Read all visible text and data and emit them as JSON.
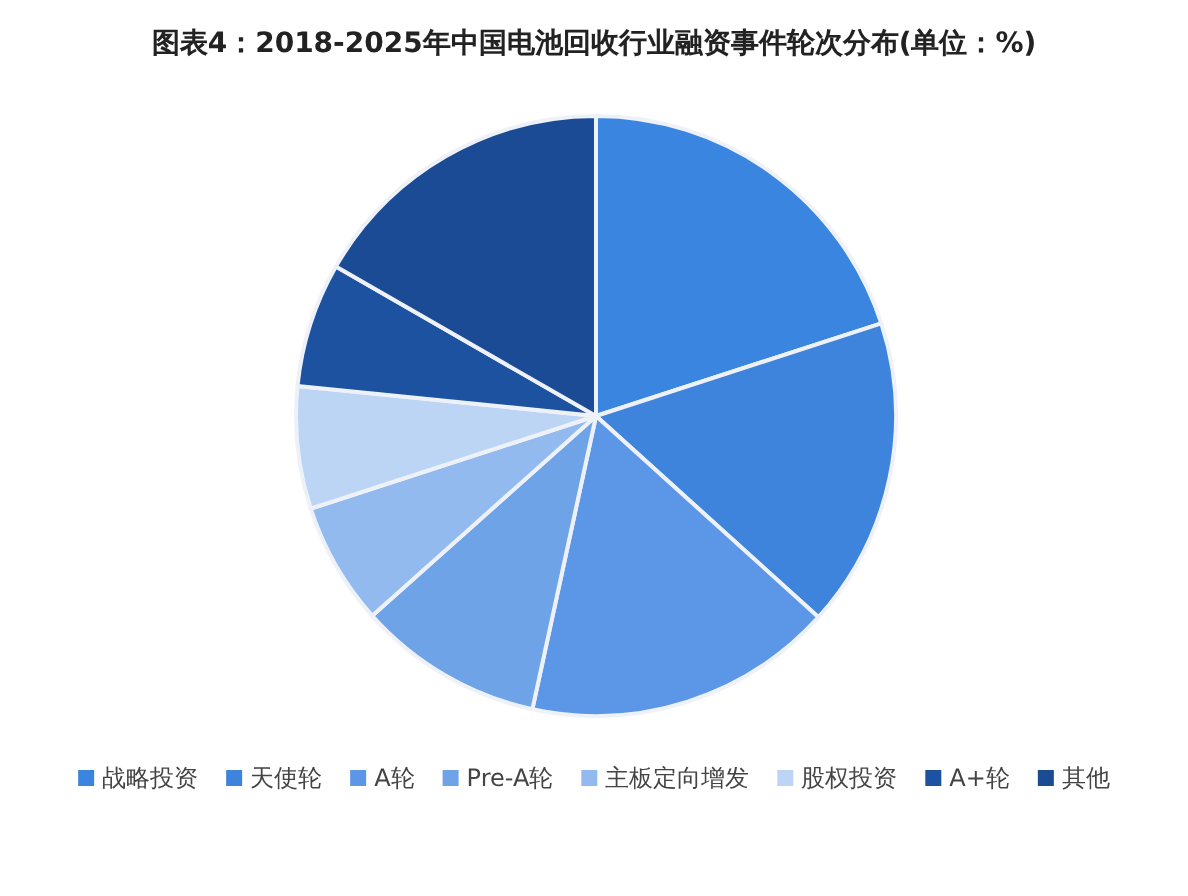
{
  "chart_data": {
    "type": "pie",
    "title": "图表4：2018-2025年中国电池回收行业融资事件轮次分布(单位：%)",
    "categories": [
      "战略投资",
      "天使轮",
      "A轮",
      "Pre-A轮",
      "主板定向增发",
      "股权投资",
      "A+轮",
      "其他"
    ],
    "values": [
      20,
      16.7,
      16.7,
      10,
      6.6,
      6.6,
      6.7,
      16.7
    ],
    "colors": [
      "#3a85e0",
      "#3f84dc",
      "#5b97e6",
      "#6fa3e8",
      "#92baee",
      "#bdd5f5",
      "#1d52a0",
      "#1a4b94"
    ],
    "legend": "bottom"
  }
}
